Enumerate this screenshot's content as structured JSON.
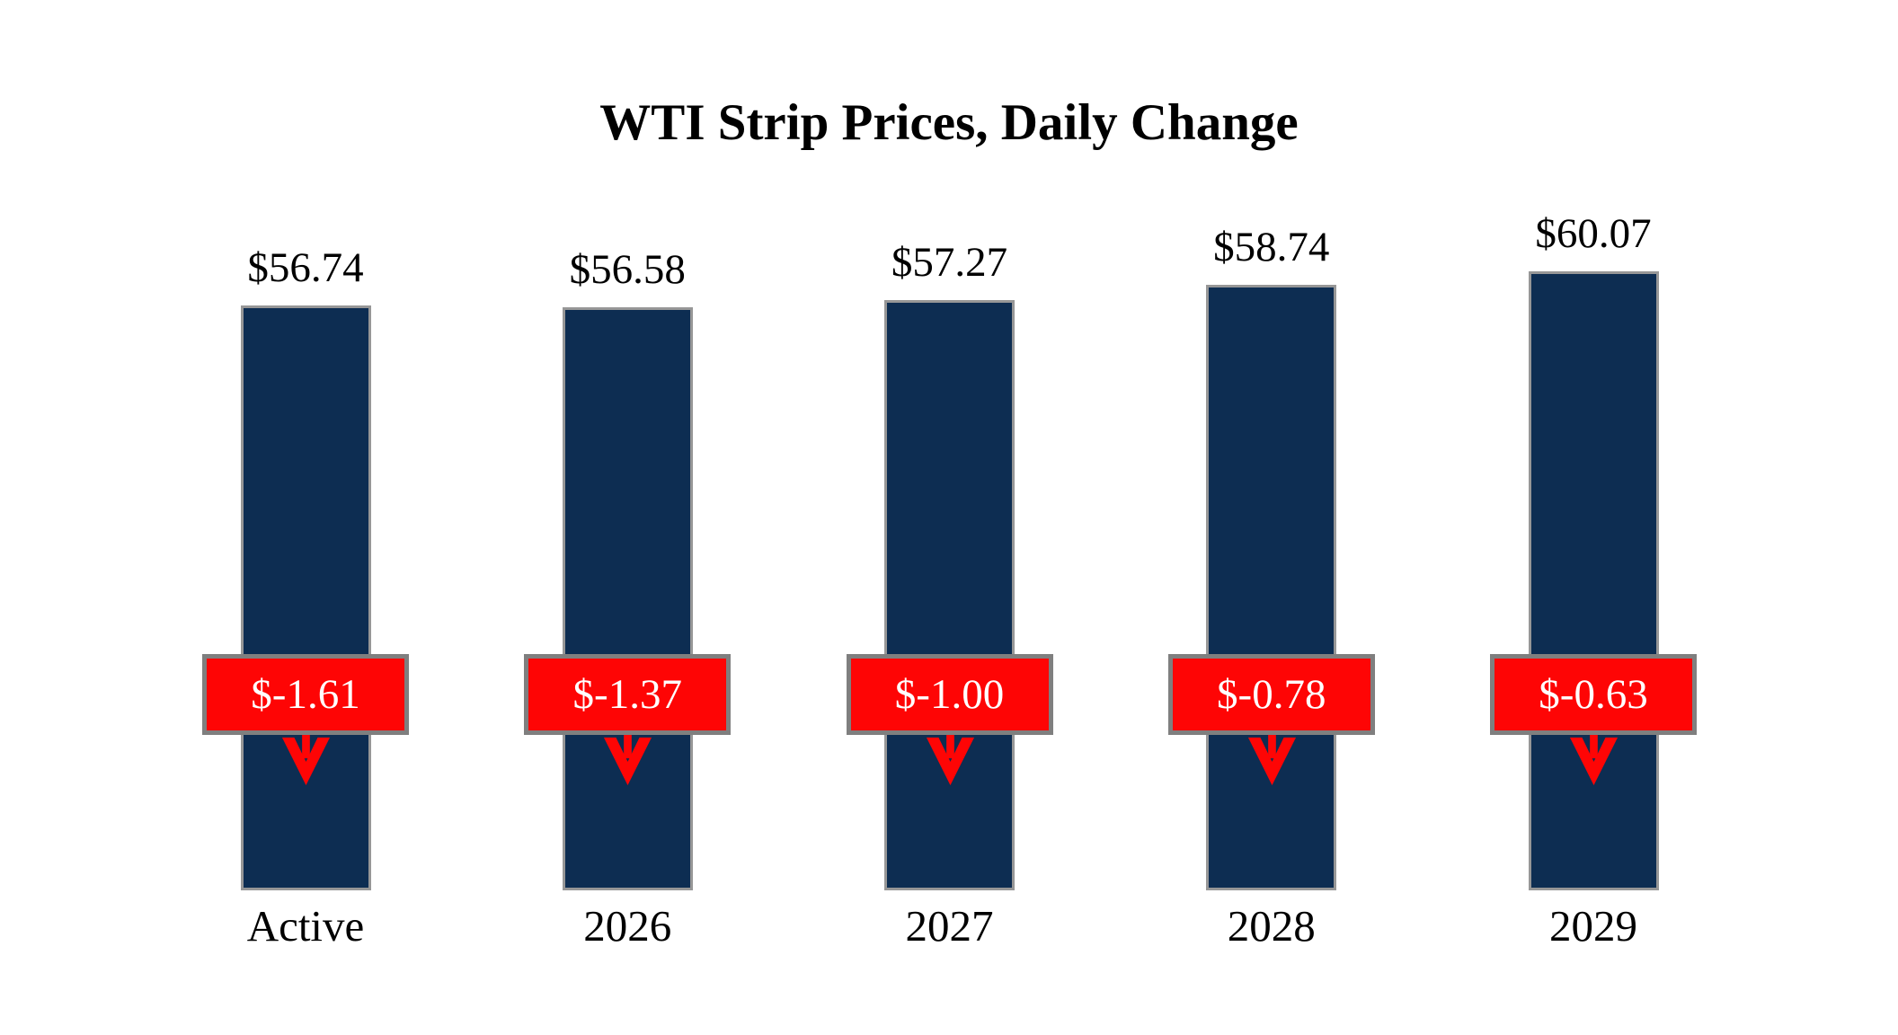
{
  "title": "WTI Strip Prices, Daily Change",
  "chart_data": {
    "type": "bar",
    "title": "WTI Strip Prices, Daily Change",
    "categories": [
      "Active",
      "2026",
      "2027",
      "2028",
      "2029"
    ],
    "series": [
      {
        "name": "WTI strip price",
        "values": [
          56.74,
          56.58,
          57.27,
          58.74,
          60.07
        ],
        "labels": [
          "$56.74",
          "$56.58",
          "$57.27",
          "$58.74",
          "$60.07"
        ]
      },
      {
        "name": "Daily change",
        "values": [
          -1.61,
          -1.37,
          -1.0,
          -0.78,
          -0.63
        ],
        "labels": [
          "$-1.61",
          "$-1.37",
          "$-1.00",
          "$-0.78",
          "$-0.63"
        ]
      }
    ],
    "ylim": [
      0,
      60.07
    ],
    "grid": false,
    "legend": false,
    "annotations": "red badges show negative daily change with down arrows",
    "colors": {
      "bar_fill": "#0D2D52",
      "bar_border": "#979797",
      "change_fill": "#FE0505",
      "change_border": "#7F7F7F",
      "change_text": "#FFFFFF",
      "arrow": "#FE0505",
      "label_text": "#000000",
      "background": "#FFFFFF"
    }
  }
}
